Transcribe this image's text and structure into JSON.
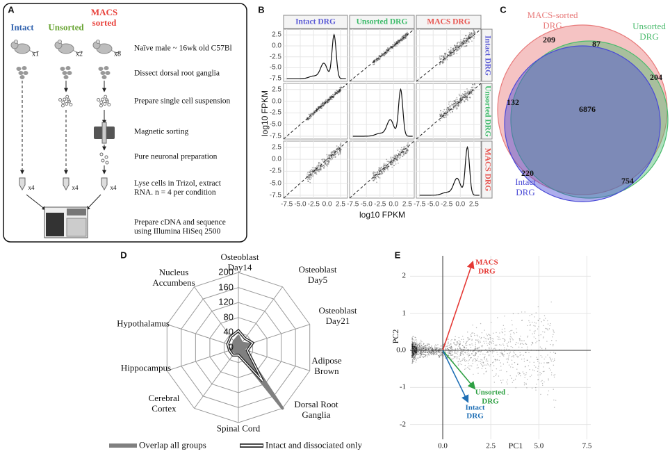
{
  "figure": {
    "a": {
      "label": "A",
      "groups": [
        {
          "name": "Intact",
          "color": "#3465b0",
          "mice": "x1",
          "tubes": "x4"
        },
        {
          "name": "Unsorted",
          "color": "#6aa535",
          "mice": "x2",
          "tubes": "x4"
        },
        {
          "name": "MACS\nsorted",
          "color": "#e8413b",
          "mice": "x8",
          "tubes": "x4"
        }
      ],
      "steps": [
        "Naïve male ~ 16wk old C57Bl",
        "Dissect dorsal root ganglia",
        "Prepare single cell suspension",
        "Magnetic sorting",
        "Pure neuronal preparation",
        "Lyse cells in Trizol, extract\nRNA. n = 4 per condition",
        "Prepare cDNA and sequence\nusing Illumina HiSeq 2500"
      ]
    },
    "b": {
      "label": "B",
      "columns": [
        {
          "name": "Intact DRG",
          "color": "#5b5bd6"
        },
        {
          "name": "Unsorted DRG",
          "color": "#3dbb6a"
        },
        {
          "name": "MACS DRG",
          "color": "#e8544f"
        }
      ],
      "xlabel": "log10 FPKM",
      "ylabel": "log10 FPKM",
      "lim": [
        -8.1,
        3.8
      ],
      "ticks": [
        -7.5,
        {
          "value": -5,
          "label": "-5.0"
        },
        -2.5,
        {
          "value": 0,
          "label": "0.0"
        },
        2.5
      ]
    },
    "c": {
      "label": "C",
      "sets": [
        {
          "name": "MACS-sorted\nDRG",
          "color": "#e87a7a"
        },
        {
          "name": "Unsorted\nDRG",
          "color": "#4cbb6e"
        },
        {
          "name": "Intact\nDRG",
          "color": "#4a4ad6"
        }
      ],
      "counts": [
        209,
        87,
        204,
        132,
        6876,
        220,
        754
      ]
    }
  },
  "chart_data": [
    {
      "type": "radar",
      "label": "D",
      "categories": [
        "Osteoblast\nDay14",
        "Osteoblast\nDay5",
        "Osteoblast\nDay21",
        "Adipose\nBrown",
        "Dorsal Root\nGanglia",
        "Spinal Cord",
        "Cerebral\nCortex",
        "Hippocampus",
        "Hypothalamus",
        "Nucleus\nAccumbens"
      ],
      "rlim": [
        0,
        200
      ],
      "rticks": [
        0,
        40,
        80,
        120,
        160,
        200
      ],
      "grid": true,
      "series": [
        {
          "name": "Overlap all groups",
          "color": "#808080",
          "values": [
            30,
            15,
            30,
            15,
            200,
            15,
            15,
            20,
            15,
            20
          ]
        },
        {
          "name": "Intact and dissociated only",
          "color": "#222222",
          "values": [
            45,
            30,
            40,
            25,
            110,
            20,
            25,
            25,
            30,
            35
          ]
        }
      ]
    },
    {
      "type": "biplot",
      "label": "E",
      "xlabel": "PC1",
      "ylabel": "PC2",
      "xlim": [
        -1.7,
        7.7
      ],
      "ylim": [
        -2.4,
        2.55
      ],
      "xticks": [
        {
          "value": 0,
          "label": "0.0"
        },
        2.5,
        {
          "value": 5,
          "label": "5.0"
        },
        7.5
      ],
      "yticks": [
        -2,
        -1,
        {
          "value": 0,
          "label": "0.0"
        },
        1,
        2
      ],
      "grid": true,
      "series": [
        {
          "name": "MACS\nDRG",
          "color": "#e53935",
          "x": 1.57,
          "y": 2.4
        },
        {
          "name": "Unsorted\nDRG",
          "color": "#2ea043",
          "x": 1.68,
          "y": -1.04
        },
        {
          "name": "Intact\nDRG",
          "color": "#1f6fb5",
          "x": 1.32,
          "y": -1.4
        }
      ]
    }
  ]
}
